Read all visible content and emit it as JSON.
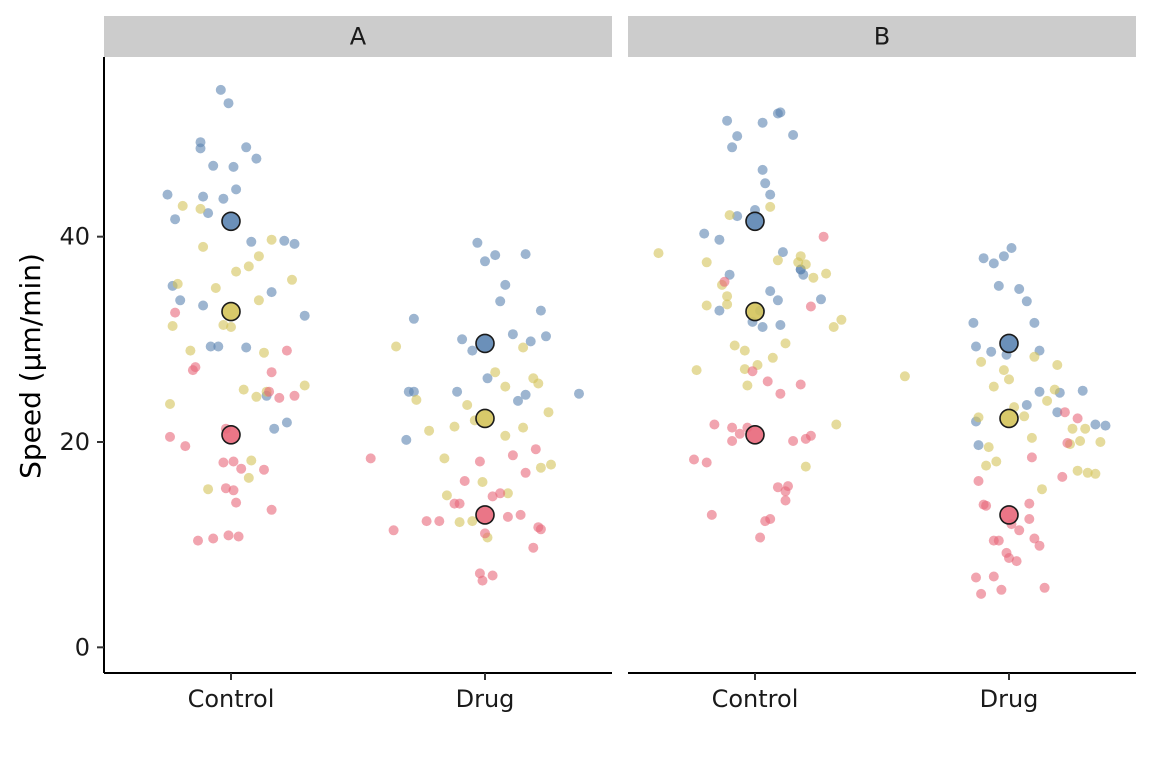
{
  "chart_data": {
    "type": "scatter",
    "ylabel": "Speed (μm/min)",
    "xlabel": "",
    "ylim": [
      -2.5,
      57.5
    ],
    "yticks": [
      0,
      20,
      40
    ],
    "categories": [
      "Control",
      "Drug"
    ],
    "grid": false,
    "legend": "none",
    "colors": {
      "blue": "#5b84b1",
      "yellow": "#d4c35a",
      "red": "#e8677a",
      "strip": "#cccccc"
    },
    "panels": [
      {
        "label": "A",
        "means": [
          {
            "category": "Control",
            "group": "blue",
            "value": 41.5
          },
          {
            "category": "Control",
            "group": "yellow",
            "value": 32.7
          },
          {
            "category": "Control",
            "group": "red",
            "value": 20.7
          },
          {
            "category": "Drug",
            "group": "blue",
            "value": 29.6
          },
          {
            "category": "Drug",
            "group": "yellow",
            "value": 22.3
          },
          {
            "category": "Drug",
            "group": "red",
            "value": 12.9
          }
        ],
        "points": [
          {
            "category": "Control",
            "group": "blue",
            "offset": [
              -0.04,
              -0.01,
              -0.12,
              0.06,
              -0.22,
              -0.09,
              -0.11,
              -0.03,
              0.02,
              -0.07,
              0.1,
              -0.25,
              0.21,
              -0.12,
              0.08,
              -0.05,
              0.25,
              -0.2,
              -0.11,
              -0.08,
              0.01,
              0.16,
              -0.23,
              0.29,
              0.22,
              0.17,
              0.14,
              0.06
            ],
            "value": [
              54.3,
              53.0,
              49.2,
              48.7,
              41.7,
              42.3,
              43.9,
              43.7,
              44.6,
              46.9,
              47.6,
              44.1,
              39.6,
              48.6,
              39.5,
              29.3,
              39.3,
              33.8,
              33.3,
              29.3,
              46.8,
              34.6,
              35.2,
              32.3,
              21.9,
              21.3,
              24.5,
              29.2
            ]
          },
          {
            "category": "Control",
            "group": "yellow",
            "offset": [
              -0.19,
              -0.12,
              -0.21,
              -0.06,
              -0.16,
              0.02,
              0.07,
              0.11,
              0.16,
              0.11,
              0.13,
              0.14,
              0.08,
              0.05,
              0.0,
              -0.03,
              -0.11,
              -0.23,
              -0.24,
              0.29,
              0.24,
              0.1,
              0.07,
              -0.09
            ],
            "value": [
              43.0,
              42.7,
              35.4,
              35.0,
              28.9,
              36.6,
              37.1,
              38.1,
              39.7,
              33.8,
              28.7,
              24.9,
              18.2,
              25.1,
              31.2,
              31.4,
              39.0,
              31.3,
              23.7,
              25.5,
              35.8,
              24.4,
              16.5,
              15.4
            ]
          },
          {
            "category": "Control",
            "group": "red",
            "offset": [
              -0.22,
              -0.24,
              -0.15,
              -0.02,
              0.04,
              -0.01,
              -0.07,
              -0.14,
              -0.18,
              0.01,
              0.02,
              0.13,
              0.22,
              0.19,
              0.15,
              0.25,
              0.16,
              0.16,
              0.01,
              -0.02,
              0.03,
              -0.03,
              -0.13
            ],
            "value": [
              32.6,
              20.5,
              27.0,
              21.3,
              17.4,
              10.9,
              10.6,
              27.3,
              19.6,
              15.3,
              14.1,
              17.3,
              28.9,
              24.3,
              24.9,
              24.5,
              26.8,
              13.4,
              18.1,
              15.5,
              10.8,
              18.0,
              10.4
            ]
          },
          {
            "category": "Drug",
            "group": "blue",
            "offset": [
              -0.31,
              -0.28,
              -0.03,
              -0.09,
              -0.05,
              0.0,
              0.04,
              0.06,
              0.08,
              0.11,
              0.16,
              0.22,
              0.24,
              0.18,
              0.16,
              0.13,
              0.01,
              -0.11,
              -0.28,
              0.37,
              -0.3
            ],
            "value": [
              20.2,
              32.0,
              39.4,
              30.0,
              28.9,
              37.6,
              38.2,
              33.7,
              35.3,
              30.5,
              38.3,
              32.8,
              30.3,
              29.8,
              24.6,
              24.0,
              26.2,
              24.9,
              24.9,
              24.7,
              24.9
            ]
          },
          {
            "category": "Drug",
            "group": "yellow",
            "offset": [
              -0.35,
              -0.27,
              -0.22,
              -0.16,
              -0.12,
              -0.1,
              -0.07,
              -0.04,
              0.01,
              0.08,
              0.08,
              0.15,
              0.19,
              0.21,
              0.25,
              0.26,
              0.22,
              0.15,
              0.09,
              0.04,
              -0.01,
              -0.05,
              -0.15
            ],
            "value": [
              29.3,
              24.1,
              21.1,
              18.4,
              21.5,
              12.2,
              23.6,
              22.1,
              10.7,
              20.6,
              25.4,
              29.2,
              26.2,
              25.7,
              22.9,
              17.8,
              17.5,
              21.4,
              15.0,
              26.8,
              16.1,
              12.3,
              14.8
            ]
          },
          {
            "category": "Drug",
            "group": "red",
            "offset": [
              -0.45,
              -0.36,
              -0.23,
              -0.18,
              -0.12,
              -0.1,
              -0.08,
              -0.02,
              0.03,
              0.06,
              0.11,
              0.14,
              0.16,
              0.19,
              0.21,
              0.2,
              0.22,
              0.03,
              -0.02,
              -0.01,
              0.0,
              0.09
            ],
            "value": [
              18.4,
              11.4,
              12.3,
              12.3,
              14.0,
              14.0,
              16.2,
              18.1,
              14.7,
              15.0,
              18.7,
              12.9,
              17.0,
              9.7,
              11.7,
              19.3,
              11.5,
              7.0,
              7.2,
              6.5,
              11.1,
              12.7
            ]
          }
        ]
      },
      {
        "label": "B",
        "means": [
          {
            "category": "Control",
            "group": "blue",
            "value": 41.5
          },
          {
            "category": "Control",
            "group": "yellow",
            "value": 32.7
          },
          {
            "category": "Control",
            "group": "red",
            "value": 20.7
          },
          {
            "category": "Drug",
            "group": "blue",
            "value": 29.6
          },
          {
            "category": "Drug",
            "group": "yellow",
            "value": 22.3
          },
          {
            "category": "Drug",
            "group": "red",
            "value": 12.9
          }
        ],
        "points": [
          {
            "category": "Control",
            "group": "blue",
            "offset": [
              -0.07,
              -0.11,
              -0.07,
              0.0,
              0.04,
              0.06,
              0.09,
              0.1,
              0.15,
              -0.09,
              -0.2,
              -0.14,
              -0.1,
              0.03,
              0.03,
              0.06,
              0.09,
              0.1,
              0.11,
              0.26,
              0.19,
              0.18,
              0.02,
              0.03,
              -0.01,
              -0.14,
              0.18
            ],
            "value": [
              49.8,
              51.3,
              42.0,
              42.6,
              45.2,
              44.1,
              52.0,
              52.1,
              49.9,
              48.7,
              40.3,
              39.7,
              36.3,
              46.5,
              51.1,
              34.7,
              33.8,
              31.4,
              38.5,
              33.9,
              36.3,
              36.8,
              32.8,
              31.2,
              31.7,
              32.8,
              36.8
            ]
          },
          {
            "category": "Control",
            "group": "yellow",
            "offset": [
              -0.38,
              -0.23,
              -0.19,
              -0.13,
              -0.11,
              -0.1,
              -0.08,
              -0.04,
              0.06,
              0.12,
              0.17,
              0.18,
              0.2,
              0.23,
              0.28,
              0.34,
              0.32,
              0.31,
              0.2,
              0.07,
              0.01,
              -0.03,
              -0.04,
              -0.19,
              -0.11,
              0.09
            ],
            "value": [
              38.4,
              27.0,
              37.5,
              35.3,
              33.4,
              42.1,
              29.4,
              28.9,
              42.9,
              29.6,
              37.5,
              38.1,
              37.3,
              36.0,
              36.4,
              31.9,
              21.7,
              31.2,
              17.6,
              28.2,
              27.5,
              25.5,
              27.1,
              33.3,
              34.2,
              37.7
            ]
          },
          {
            "category": "Control",
            "group": "red",
            "offset": [
              -0.24,
              -0.19,
              -0.16,
              -0.12,
              -0.09,
              -0.06,
              -0.03,
              0.02,
              0.04,
              0.06,
              0.09,
              0.12,
              0.15,
              0.18,
              0.2,
              0.22,
              0.27,
              0.22,
              0.1,
              0.05,
              -0.01,
              -0.09,
              -0.17,
              0.12,
              0.13
            ],
            "value": [
              18.3,
              18.0,
              21.7,
              35.6,
              20.1,
              20.8,
              21.4,
              10.7,
              12.3,
              12.5,
              15.6,
              15.2,
              20.1,
              25.6,
              20.3,
              33.2,
              40.0,
              20.6,
              24.7,
              25.9,
              26.9,
              21.4,
              12.9,
              14.3,
              15.7
            ]
          },
          {
            "category": "Drug",
            "group": "blue",
            "offset": [
              -0.14,
              -0.13,
              -0.1,
              -0.06,
              -0.04,
              -0.02,
              0.01,
              0.04,
              0.07,
              0.1,
              0.12,
              0.2,
              0.29,
              0.34,
              0.38,
              0.19,
              0.12,
              0.07,
              -0.01,
              -0.07,
              -0.12,
              -0.13
            ],
            "value": [
              31.6,
              29.3,
              37.9,
              37.4,
              35.2,
              38.1,
              38.9,
              34.9,
              33.7,
              31.6,
              28.9,
              24.8,
              25.0,
              21.7,
              21.6,
              22.9,
              24.9,
              23.6,
              28.5,
              28.8,
              19.7,
              22.0
            ]
          },
          {
            "category": "Drug",
            "group": "yellow",
            "offset": [
              -0.41,
              -0.11,
              -0.12,
              -0.08,
              -0.05,
              0.02,
              0.06,
              0.09,
              0.13,
              0.19,
              0.25,
              0.28,
              0.3,
              0.36,
              0.34,
              0.31,
              0.27,
              0.24,
              0.18,
              0.15,
              0.1,
              -0.02,
              -0.06,
              -0.09,
              0.0
            ],
            "value": [
              26.4,
              27.8,
              22.4,
              19.5,
              18.1,
              23.4,
              22.5,
              20.4,
              15.4,
              27.5,
              21.3,
              20.1,
              21.3,
              20.0,
              16.9,
              17.0,
              17.2,
              19.8,
              25.1,
              24.0,
              28.3,
              27.0,
              25.4,
              17.7,
              26.1
            ]
          },
          {
            "category": "Drug",
            "group": "red",
            "offset": [
              -0.12,
              -0.1,
              -0.09,
              -0.06,
              -0.04,
              -0.01,
              0.01,
              0.04,
              0.08,
              0.1,
              0.12,
              0.14,
              0.22,
              0.27,
              0.23,
              0.21,
              0.09,
              0.08,
              0.03,
              0.0,
              -0.03,
              -0.06,
              -0.11,
              -0.13
            ],
            "value": [
              16.2,
              13.9,
              13.8,
              10.4,
              10.4,
              9.2,
              12.0,
              11.4,
              14.0,
              10.6,
              9.9,
              5.8,
              22.9,
              22.3,
              19.9,
              16.6,
              18.5,
              12.5,
              8.4,
              8.7,
              5.6,
              6.9,
              5.2,
              6.8
            ]
          }
        ]
      }
    ]
  }
}
